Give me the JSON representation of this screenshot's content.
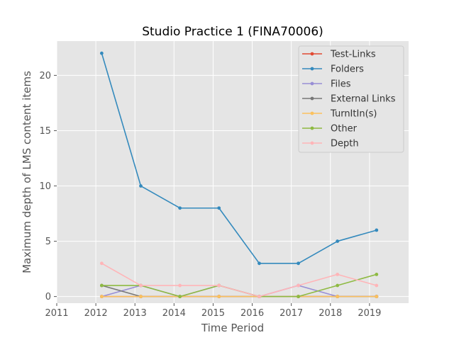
{
  "chart_data": {
    "type": "line",
    "title": "Studio Practice 1 (FINA70006)",
    "xlabel": "Time Period",
    "ylabel": "Maximum depth of LMS content items",
    "xlim": [
      2011,
      2020
    ],
    "ylim": [
      -0.6,
      23.1
    ],
    "xticks": [
      "2011",
      "2012",
      "2013",
      "2014",
      "2015",
      "2016",
      "2017",
      "2018",
      "2019"
    ],
    "yticks": [
      "0",
      "5",
      "10",
      "15",
      "20"
    ],
    "x": [
      2012.15,
      2013.15,
      2014.15,
      2015.15,
      2016.18,
      2017.18,
      2018.18,
      2019.18
    ],
    "series": [
      {
        "name": "Test-Links",
        "color": "#e24a33",
        "values": [
          0,
          0,
          0,
          0,
          0,
          0,
          0,
          0
        ]
      },
      {
        "name": "Folders",
        "color": "#348abd",
        "values": [
          22,
          10,
          8,
          8,
          3,
          3,
          5,
          6
        ]
      },
      {
        "name": "Files",
        "color": "#988ed5",
        "values": [
          0,
          1,
          0,
          1,
          0,
          1,
          0,
          0
        ]
      },
      {
        "name": "External Links",
        "color": "#777777",
        "values": [
          1,
          0,
          0,
          0,
          0,
          0,
          0,
          0
        ]
      },
      {
        "name": "TurnItIn(s)",
        "color": "#fbc15e",
        "values": [
          0,
          0,
          0,
          0,
          0,
          0,
          0,
          0
        ]
      },
      {
        "name": "Other",
        "color": "#8eba42",
        "values": [
          1,
          1,
          0,
          1,
          0,
          0,
          1,
          2
        ]
      },
      {
        "name": "Depth",
        "color": "#ffb5b8",
        "values": [
          3,
          1,
          1,
          1,
          0,
          1,
          2,
          1
        ]
      }
    ],
    "grid": true,
    "legend_position": "top-right"
  }
}
